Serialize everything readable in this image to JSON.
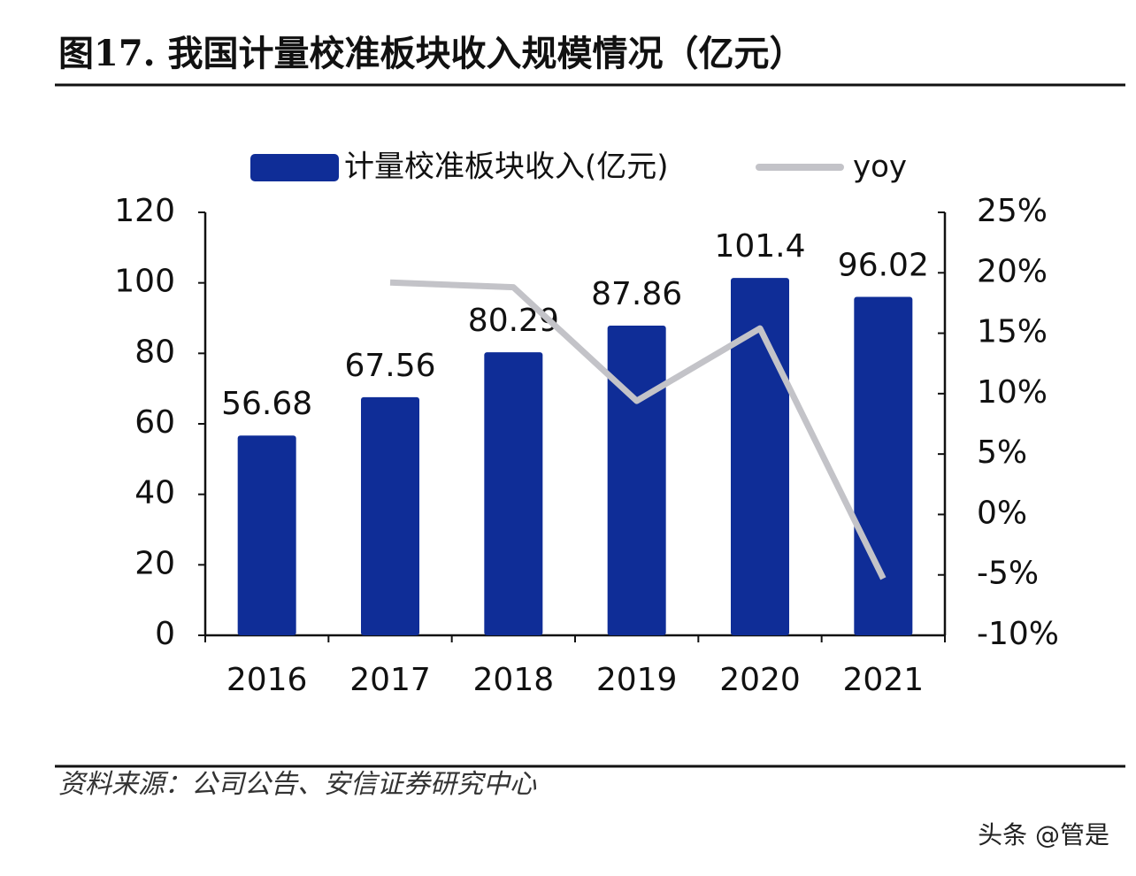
{
  "header": {
    "title": "图17. 我国计量校准板块收入规模情况（亿元）"
  },
  "chart_data": {
    "type": "bar",
    "categories": [
      "2016",
      "2017",
      "2018",
      "2019",
      "2020",
      "2021"
    ],
    "series": [
      {
        "name": "计量校准板块收入(亿元)",
        "type": "bar",
        "color": "#0f2d97",
        "values": [
          56.68,
          67.56,
          80.29,
          87.86,
          101.4,
          96.02
        ]
      },
      {
        "name": "yoy",
        "type": "line",
        "axis": "y2",
        "color": "#c3c3c8",
        "values": [
          null,
          19.2,
          18.8,
          9.4,
          15.4,
          -5.3
        ]
      }
    ],
    "ylim": [
      0,
      120
    ],
    "yticks": [
      0,
      20,
      40,
      60,
      80,
      100,
      120
    ],
    "y2lim": [
      -10,
      25
    ],
    "y2ticks": [
      {
        "value": -10,
        "label": "-10%"
      },
      {
        "value": -5,
        "label": "-5%"
      },
      {
        "value": 0,
        "label": "0%"
      },
      {
        "value": 5,
        "label": "5%"
      },
      {
        "value": 10,
        "label": "10%"
      },
      {
        "value": 15,
        "label": "15%"
      },
      {
        "value": 20,
        "label": "20%"
      },
      {
        "value": 25,
        "label": "25%"
      }
    ],
    "grid": false,
    "legend": "top"
  },
  "footer": {
    "source": "资料来源：公司公告、安信证券研究中心",
    "watermark": "头条 @管是"
  }
}
